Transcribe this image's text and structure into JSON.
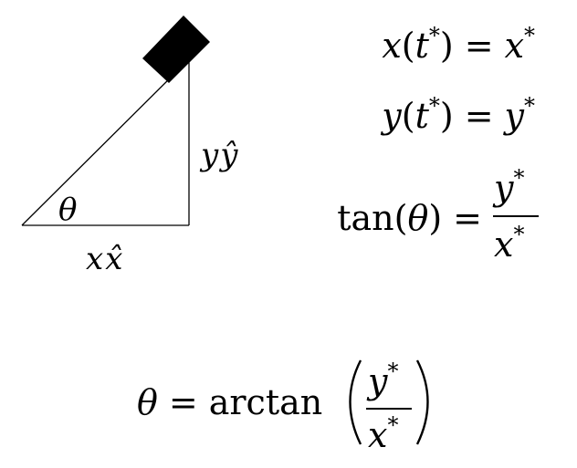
{
  "colors": {
    "background": "#ffffff",
    "ink": "#000000"
  },
  "triangle": {
    "angle_symbol": "θ",
    "base_label": {
      "var": "x",
      "unit": "x̂"
    },
    "height_label": {
      "var": "y",
      "unit": "ŷ"
    }
  },
  "equations": {
    "eq1": {
      "lhs_fn": "x",
      "lhs_arg": "t",
      "star": "*",
      "eq": "=",
      "rhs": "x"
    },
    "eq2": {
      "lhs_fn": "y",
      "lhs_arg": "t",
      "star": "*",
      "eq": "=",
      "rhs": "y"
    },
    "eq3": {
      "lhs_fn": "tan",
      "lhs_arg": "θ",
      "eq": "=",
      "num": "y",
      "den": "x",
      "star": "*"
    },
    "eq4": {
      "lhs": "θ",
      "eq": "=",
      "fn": "arctan",
      "num": "y",
      "den": "x",
      "star": "*"
    }
  }
}
